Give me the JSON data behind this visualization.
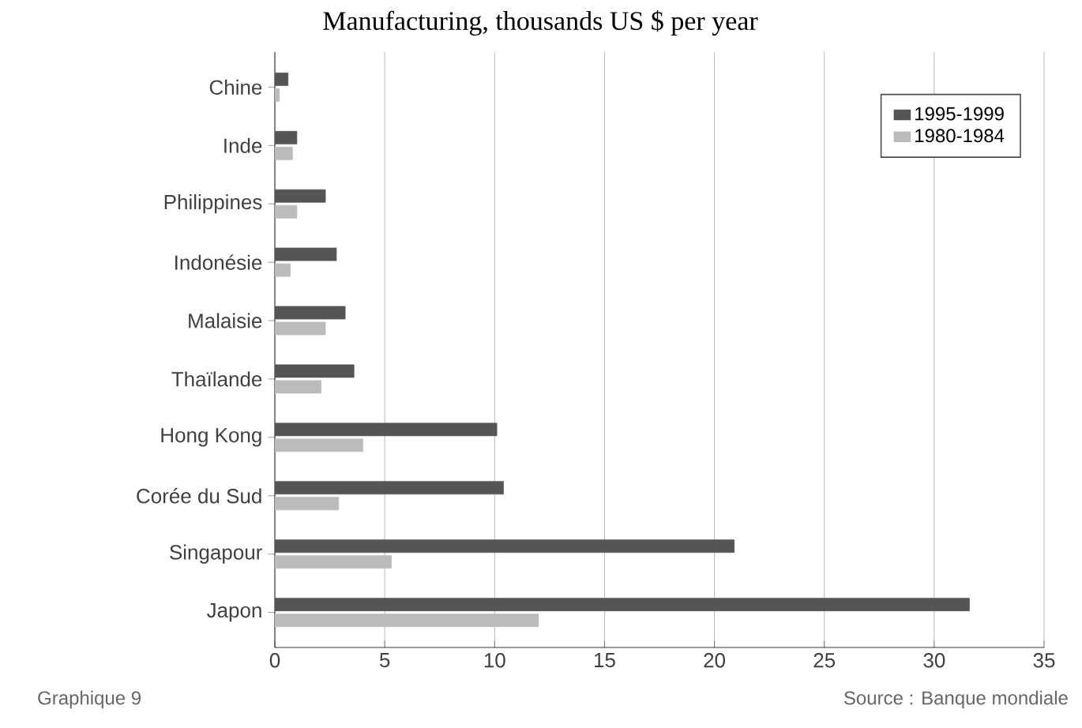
{
  "chart_data": {
    "type": "bar",
    "orientation": "horizontal",
    "title": "Manufacturing, thousands US $ per year",
    "categories": [
      "Chine",
      "Inde",
      "Philippines",
      "Indonésie",
      "Malaisie",
      "Thaïlande",
      "Hong Kong",
      "Corée du Sud",
      "Singapour",
      "Japon"
    ],
    "series": [
      {
        "name": "1995-1999",
        "color": "#555555",
        "values": [
          0.6,
          1.0,
          2.3,
          2.8,
          3.2,
          3.6,
          10.1,
          10.4,
          20.9,
          31.6
        ]
      },
      {
        "name": "1980-1984",
        "color": "#bbbbbb",
        "values": [
          0.2,
          0.8,
          1.0,
          0.7,
          2.3,
          2.1,
          4.0,
          2.9,
          5.3,
          12.0
        ]
      }
    ],
    "xlim": [
      0,
      35
    ],
    "xticks": [
      0,
      5,
      10,
      15,
      20,
      25,
      30,
      35
    ],
    "grid": "x",
    "legend": "top right",
    "annotations": [
      "Graphique 9",
      "Source : Banque mondiale"
    ]
  }
}
